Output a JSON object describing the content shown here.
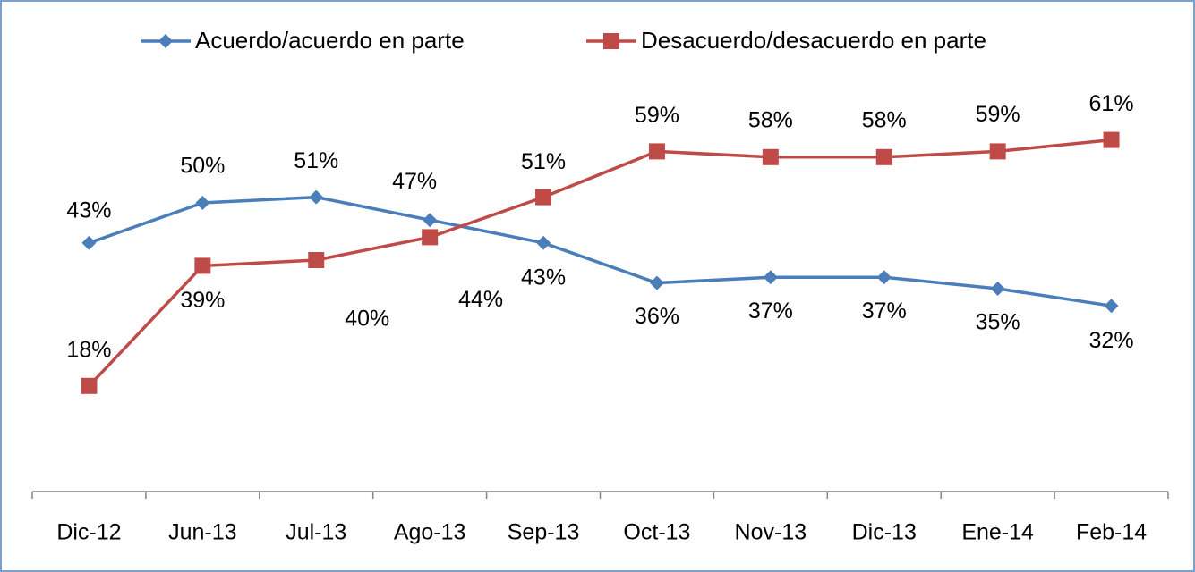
{
  "chart_data": {
    "type": "line",
    "categories": [
      "Dic-12",
      "Jun-13",
      "Jul-13",
      "Ago-13",
      "Sep-13",
      "Oct-13",
      "Nov-13",
      "Dic-13",
      "Ene-14",
      "Feb-14"
    ],
    "series": [
      {
        "name": "Acuerdo/acuerdo en parte",
        "color": "#4a7ebb",
        "marker": "diamond",
        "values": [
          43,
          50,
          51,
          47,
          43,
          36,
          37,
          37,
          35,
          32
        ],
        "value_labels": [
          "43%",
          "50%",
          "51%",
          "47%",
          "43%",
          "36%",
          "37%",
          "37%",
          "35%",
          "32%"
        ]
      },
      {
        "name": "Desacuerdo/desacuerdo en parte",
        "color": "#be4b48",
        "marker": "square",
        "values": [
          18,
          39,
          40,
          44,
          51,
          59,
          58,
          58,
          59,
          61
        ],
        "value_labels": [
          "18%",
          "39%",
          "40%",
          "44%",
          "51%",
          "59%",
          "58%",
          "58%",
          "59%",
          "61%"
        ]
      }
    ],
    "ylim": [
      0,
      70
    ],
    "legend": "top"
  }
}
